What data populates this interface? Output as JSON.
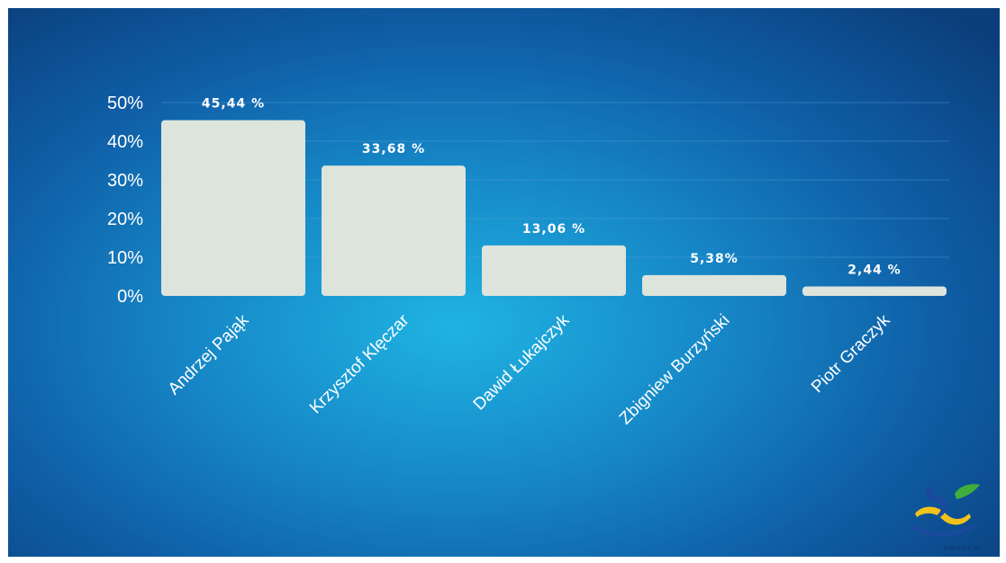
{
  "chart_data": {
    "type": "bar",
    "categories": [
      "Andrzej Pająk",
      "Krzysztof Klęczar",
      "Dawid Łukajczyk",
      "Zbigniew Burzyński",
      "Piotr Graczyk"
    ],
    "values": [
      45.44,
      33.68,
      13.06,
      5.38,
      2.44
    ],
    "value_labels": [
      "45,44 %",
      "33,68 %",
      "13,06 %",
      "5,38%",
      "2,44 %"
    ],
    "yticks": [
      "0%",
      "10%",
      "20%",
      "30%",
      "40%",
      "50%"
    ],
    "ytick_values": [
      0,
      10,
      20,
      30,
      40,
      50
    ],
    "ylim": [
      0,
      50
    ],
    "grid": true,
    "colors": {
      "bar": "#dde4dc",
      "text": "#ffffff",
      "background": "#1686c6"
    }
  },
  "logo": {
    "text": "sobczyce.pl",
    "icon": "swan-logo-icon"
  }
}
